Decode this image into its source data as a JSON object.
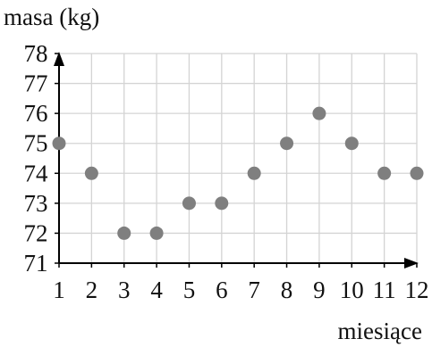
{
  "chart_data": {
    "type": "scatter",
    "title": "",
    "ylabel": "masa (kg)",
    "xlabel": "miesiące",
    "x": [
      1,
      2,
      3,
      4,
      5,
      6,
      7,
      8,
      9,
      10,
      11,
      12
    ],
    "y": [
      75,
      74,
      72,
      72,
      73,
      73,
      74,
      75,
      76,
      75,
      74,
      74
    ],
    "x_ticks": [
      "1",
      "2",
      "3",
      "4",
      "5",
      "6",
      "7",
      "8",
      "9",
      "10",
      "11",
      "12"
    ],
    "y_ticks": [
      "71",
      "72",
      "73",
      "74",
      "75",
      "76",
      "77",
      "78"
    ],
    "xlim": [
      1,
      12
    ],
    "ylim": [
      71,
      78
    ],
    "grid": true,
    "colors": {
      "point": "#7f7f7f",
      "grid": "#d4d4d4",
      "axis": "#000000"
    }
  }
}
